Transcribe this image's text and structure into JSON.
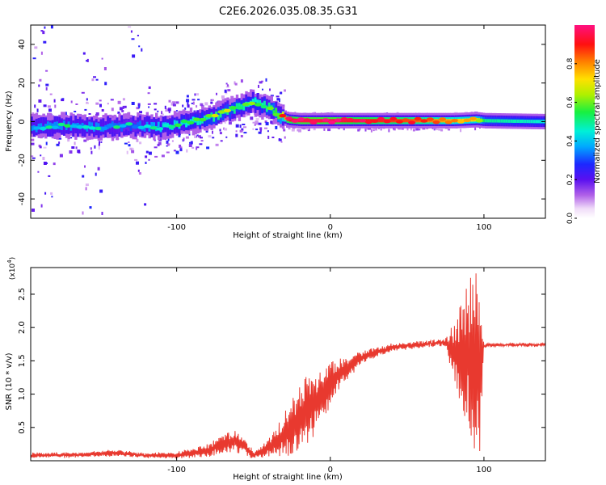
{
  "title": "C2E6.2026.035.08.35.G31",
  "chart_data": [
    {
      "type": "heatmap",
      "name": "spectrogram",
      "xlabel": "Height of straight line (km)",
      "ylabel": "Frequency (Hz)",
      "xlim": [
        -195,
        140
      ],
      "ylim": [
        -50,
        50
      ],
      "xticks": [
        -100,
        0,
        100
      ],
      "xtick_labels": [
        "-100",
        "0",
        "100"
      ],
      "yticks": [
        -40,
        -20,
        0,
        20,
        40
      ],
      "ytick_labels": [
        "-40",
        "-20",
        "0",
        "20",
        "40"
      ],
      "colorbar": {
        "label": "Normalized spectral amplitude",
        "range": [
          0,
          1
        ],
        "ticks": [
          0.0,
          0.2,
          0.4,
          0.6,
          0.8
        ],
        "tick_labels": [
          "0.0",
          "0.2",
          "0.4",
          "0.6",
          "0.8"
        ]
      },
      "ridge": {
        "x": [
          -195,
          -170,
          -150,
          -130,
          -110,
          -90,
          -75,
          -62,
          -50,
          -40,
          -33,
          -28,
          -20,
          -10,
          0,
          20,
          50,
          80,
          95,
          100,
          140
        ],
        "y": [
          -3,
          -2,
          -3,
          -2,
          -3,
          0,
          3,
          7,
          10,
          7,
          3,
          1,
          0.5,
          0.5,
          0.5,
          0.5,
          0.5,
          0.5,
          1,
          0.5,
          0
        ],
        "peak_amplitude": [
          0.35,
          0.35,
          0.35,
          0.3,
          0.4,
          0.45,
          0.5,
          0.5,
          0.45,
          0.5,
          0.6,
          0.9,
          0.95,
          0.95,
          0.95,
          0.9,
          0.85,
          0.75,
          0.7,
          0.5,
          0.45
        ]
      }
    },
    {
      "type": "line",
      "name": "snr",
      "xlabel": "Height of straight line (km)",
      "ylabel": "SNR (10 * v/v)",
      "y_scale_label": "(x10",
      "y_scale_exponent": "4",
      "xlim": [
        -195,
        140
      ],
      "ylim": [
        0,
        2.9
      ],
      "xticks": [
        -100,
        0,
        100
      ],
      "xtick_labels": [
        "-100",
        "0",
        "100"
      ],
      "yticks": [
        0.5,
        1.0,
        1.5,
        2.0,
        2.5
      ],
      "ytick_labels": [
        "0.5",
        "1.0",
        "1.5",
        "2.0",
        "2.5"
      ],
      "color": "#e8392f",
      "envelope": {
        "x": [
          -195,
          -160,
          -140,
          -120,
          -100,
          -80,
          -70,
          -60,
          -50,
          -40,
          -32,
          -25,
          -15,
          -5,
          5,
          20,
          40,
          60,
          75,
          82,
          88,
          93,
          97,
          100,
          103,
          110,
          140
        ],
        "level": [
          0.08,
          0.09,
          0.12,
          0.08,
          0.08,
          0.15,
          0.25,
          0.3,
          0.08,
          0.2,
          0.35,
          0.5,
          0.75,
          1.0,
          1.3,
          1.55,
          1.7,
          1.75,
          1.78,
          1.6,
          1.6,
          1.55,
          1.4,
          1.72,
          1.74,
          1.74,
          1.74
        ],
        "spread": [
          0.03,
          0.03,
          0.04,
          0.03,
          0.04,
          0.08,
          0.12,
          0.15,
          0.05,
          0.12,
          0.25,
          0.35,
          0.45,
          0.35,
          0.2,
          0.08,
          0.05,
          0.04,
          0.05,
          0.45,
          0.8,
          1.1,
          1.2,
          0.02,
          0.02,
          0.02,
          0.02
        ]
      }
    }
  ]
}
